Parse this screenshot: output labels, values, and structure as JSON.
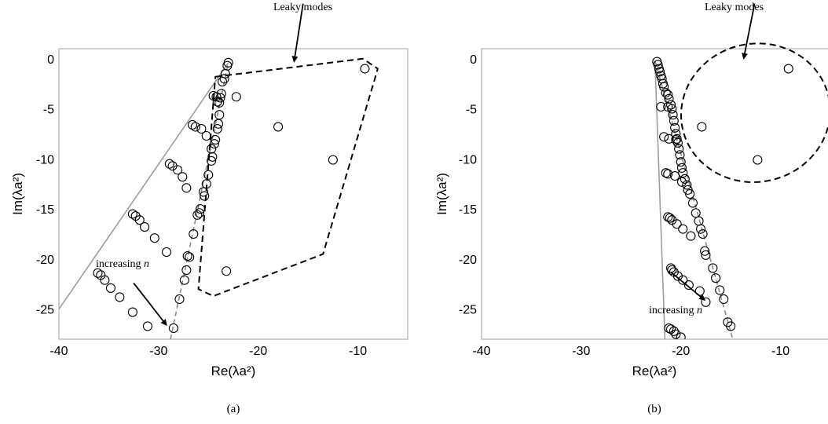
{
  "figure": {
    "panel_labels": [
      "(a)",
      "(b)"
    ]
  },
  "chart_data": [
    {
      "type": "scatter",
      "panel": "(a)",
      "xlabel": "Re(λa²)",
      "ylabel": "Im(λa²)",
      "xlim": [
        -40,
        -5
      ],
      "ylim": [
        -28,
        1
      ],
      "xticks": [
        -40,
        -30,
        -20,
        -10
      ],
      "yticks": [
        0,
        -5,
        -10,
        -15,
        -20,
        -25
      ],
      "grid": false,
      "annotations": {
        "leaky": "Leaky modes",
        "increasing_prefix": "increasing ",
        "increasing_var": "n"
      },
      "leaky_region_polygon": [
        [
          -24.3,
          -1.8
        ],
        [
          -9.5,
          0.0
        ],
        [
          -8.0,
          -1.0
        ],
        [
          -13.5,
          -19.5
        ],
        [
          -24.5,
          -23.7
        ],
        [
          -26.0,
          -23.0
        ]
      ],
      "leaky_arrow": {
        "from": [
          -15.5,
          5.5
        ],
        "to": [
          -16.4,
          -0.3
        ]
      },
      "increasing_arrow": {
        "from": [
          -32.5,
          -22.4
        ],
        "to": [
          -29.2,
          -26.6
        ]
      },
      "lines": [
        {
          "style": "solid",
          "color": "#9e9e9e",
          "points": [
            [
              -40,
              -25
            ],
            [
              -23,
              -0.4
            ]
          ]
        },
        {
          "style": "dashed",
          "color": "#8a8a8a",
          "points": [
            [
              -28.8,
              -28
            ],
            [
              -23,
              -0.4
            ]
          ]
        }
      ],
      "points": [
        [
          -23,
          -0.4
        ],
        [
          -23.1,
          -0.7
        ],
        [
          -23.3,
          -1.5
        ],
        [
          -23.6,
          -2.3
        ],
        [
          -23.4,
          -2.0
        ],
        [
          -24.5,
          -3.7
        ],
        [
          -24.2,
          -3.8
        ],
        [
          -23.8,
          -3.9
        ],
        [
          -24.1,
          -4.3
        ],
        [
          -23.9,
          -4.4
        ],
        [
          -23.7,
          -3.5
        ],
        [
          -23.9,
          -5.6
        ],
        [
          -24.0,
          -6.5
        ],
        [
          -24.1,
          -7.0
        ],
        [
          -24.3,
          -8.1
        ],
        [
          -24.4,
          -8.5
        ],
        [
          -24.7,
          -9.0
        ],
        [
          -24.6,
          -9.8
        ],
        [
          -24.7,
          -10.2
        ],
        [
          -25.0,
          -11.6
        ],
        [
          -25.2,
          -12.5
        ],
        [
          -25.5,
          -13.3
        ],
        [
          -25.4,
          -13.7
        ],
        [
          -25.8,
          -15.0
        ],
        [
          -25.9,
          -15.4
        ],
        [
          -26.1,
          -15.6
        ],
        [
          -26.5,
          -17.5
        ],
        [
          -27.1,
          -19.7
        ],
        [
          -26.9,
          -19.8
        ],
        [
          -27.2,
          -21.1
        ],
        [
          -27.4,
          -22.1
        ],
        [
          -27.9,
          -24.0
        ],
        [
          -28.5,
          -26.9
        ],
        [
          -26.6,
          -6.6
        ],
        [
          -26.3,
          -6.8
        ],
        [
          -25.7,
          -7.0
        ],
        [
          -25.2,
          -7.7
        ],
        [
          -28.9,
          -10.5
        ],
        [
          -28.6,
          -10.7
        ],
        [
          -28.1,
          -11.1
        ],
        [
          -27.6,
          -11.8
        ],
        [
          -27.2,
          -12.9
        ],
        [
          -32.6,
          -15.5
        ],
        [
          -32.3,
          -15.7
        ],
        [
          -31.9,
          -16.1
        ],
        [
          -31.4,
          -16.8
        ],
        [
          -30.4,
          -17.9
        ],
        [
          -29.2,
          -19.3
        ],
        [
          -36.1,
          -21.4
        ],
        [
          -35.8,
          -21.6
        ],
        [
          -35.4,
          -22.1
        ],
        [
          -34.8,
          -22.9
        ],
        [
          -33.9,
          -23.8
        ],
        [
          -32.6,
          -25.3
        ],
        [
          -31.1,
          -26.7
        ],
        [
          -23.2,
          -21.2
        ],
        [
          -22.2,
          -3.8
        ],
        [
          -18.0,
          -6.8
        ],
        [
          -12.5,
          -10.1
        ],
        [
          -9.3,
          -1.0
        ]
      ]
    },
    {
      "type": "scatter",
      "panel": "(b)",
      "xlabel": "Re(λa²)",
      "ylabel": "Im(λa²)",
      "xlim": [
        -40,
        -5
      ],
      "ylim": [
        -28,
        1
      ],
      "xticks": [
        -40,
        -30,
        -20,
        -10
      ],
      "yticks": [
        0,
        -5,
        -10,
        -15,
        -20,
        -25
      ],
      "grid": false,
      "annotations": {
        "leaky": "Leaky modes",
        "increasing_prefix": "increasing ",
        "increasing_var": "n"
      },
      "leaky_region_ellipse": {
        "center": [
          -12.5,
          -5.4
        ],
        "rx": 7.5,
        "ry": 6.9
      },
      "leaky_arrow": {
        "from": [
          -12.6,
          5.5
        ],
        "to": [
          -13.7,
          0.0
        ]
      },
      "increasing_arrow": {
        "from": [
          -21.0,
          -21.3
        ],
        "to": [
          -17.6,
          -24.1
        ]
      },
      "lines": [
        {
          "style": "solid",
          "color": "#9e9e9e",
          "points": [
            [
              -22.6,
              -0.2
            ],
            [
              -21.6,
              -28
            ]
          ]
        },
        {
          "style": "dashed",
          "color": "#8a8a8a",
          "points": [
            [
              -22.6,
              -0.2
            ],
            [
              -14.8,
              -28
            ]
          ]
        }
      ],
      "points": [
        [
          -22.4,
          -0.3
        ],
        [
          -22.3,
          -0.6
        ],
        [
          -22.2,
          -1.0
        ],
        [
          -22.1,
          -1.3
        ],
        [
          -22.0,
          -1.7
        ],
        [
          -21.9,
          -2.0
        ],
        [
          -21.8,
          -2.5
        ],
        [
          -21.7,
          -2.8
        ],
        [
          -21.5,
          -3.4
        ],
        [
          -21.3,
          -3.6
        ],
        [
          -21.2,
          -4.0
        ],
        [
          -21.0,
          -4.6
        ],
        [
          -20.9,
          -5.0
        ],
        [
          -20.8,
          -5.6
        ],
        [
          -20.7,
          -6.2
        ],
        [
          -20.6,
          -6.9
        ],
        [
          -20.5,
          -7.5
        ],
        [
          -20.4,
          -8.0
        ],
        [
          -20.3,
          -8.4
        ],
        [
          -20.2,
          -9.0
        ],
        [
          -20.1,
          -9.6
        ],
        [
          -20.0,
          -10.3
        ],
        [
          -19.9,
          -10.9
        ],
        [
          -19.8,
          -11.4
        ],
        [
          -19.6,
          -12.0
        ],
        [
          -19.4,
          -12.6
        ],
        [
          -19.3,
          -13.1
        ],
        [
          -19.1,
          -13.5
        ],
        [
          -18.8,
          -14.4
        ],
        [
          -18.5,
          -15.4
        ],
        [
          -18.2,
          -16.2
        ],
        [
          -18.0,
          -17.0
        ],
        [
          -17.8,
          -17.5
        ],
        [
          -17.6,
          -19.2
        ],
        [
          -17.5,
          -19.6
        ],
        [
          -16.8,
          -20.9
        ],
        [
          -16.5,
          -21.9
        ],
        [
          -16.1,
          -23.1
        ],
        [
          -15.7,
          -24.0
        ],
        [
          -15.3,
          -26.3
        ],
        [
          -15.0,
          -26.7
        ],
        [
          -22.0,
          -4.8
        ],
        [
          -21.3,
          -4.8
        ],
        [
          -21.7,
          -7.8
        ],
        [
          -21.2,
          -8.0
        ],
        [
          -20.5,
          -8.1
        ],
        [
          -21.5,
          -11.4
        ],
        [
          -21.3,
          -11.5
        ],
        [
          -20.6,
          -11.7
        ],
        [
          -19.9,
          -12.3
        ],
        [
          -21.3,
          -15.8
        ],
        [
          -21.1,
          -15.9
        ],
        [
          -20.9,
          -16.1
        ],
        [
          -20.4,
          -16.5
        ],
        [
          -19.8,
          -17.0
        ],
        [
          -19.0,
          -17.7
        ],
        [
          -21.0,
          -20.9
        ],
        [
          -20.9,
          -21.1
        ],
        [
          -20.7,
          -21.3
        ],
        [
          -20.3,
          -21.7
        ],
        [
          -19.8,
          -22.1
        ],
        [
          -19.2,
          -22.6
        ],
        [
          -18.1,
          -23.2
        ],
        [
          -17.5,
          -24.3
        ],
        [
          -21.2,
          -26.9
        ],
        [
          -21.0,
          -27.0
        ],
        [
          -20.7,
          -27.2
        ],
        [
          -20.5,
          -27.5
        ],
        [
          -20.0,
          -27.8
        ],
        [
          -17.9,
          -6.8
        ],
        [
          -12.3,
          -10.1
        ],
        [
          -9.2,
          -1.0
        ]
      ]
    }
  ]
}
